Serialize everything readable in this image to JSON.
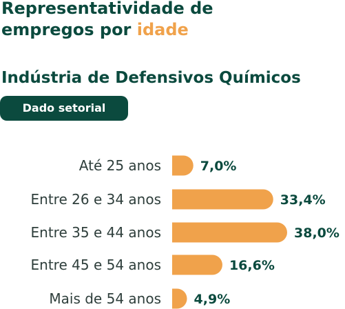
{
  "header": {
    "title_line1": "Representatividade de",
    "title_line2_prefix": "empregos por ",
    "title_line2_accent": "idade",
    "subtitle": "Indústria de Defensivos Químicos",
    "badge": "Dado setorial"
  },
  "colors": {
    "primary": "#0b4a3e",
    "accent": "#f0a24b",
    "label": "#2e3e3b"
  },
  "chart_data": {
    "type": "bar",
    "orientation": "horizontal",
    "categories": [
      "Até 25 anos",
      "Entre 26 e 34 anos",
      "Entre 35 e 44 anos",
      "Entre 45 e 54 anos",
      "Mais de 54 anos"
    ],
    "values": [
      7.0,
      33.4,
      38.0,
      16.6,
      4.9
    ],
    "value_labels": [
      "7,0%",
      "33,4%",
      "38,0%",
      "16,6%",
      "4,9%"
    ],
    "unit": "%",
    "xlim": [
      0,
      38.0
    ],
    "grid": false,
    "legend": "none"
  }
}
